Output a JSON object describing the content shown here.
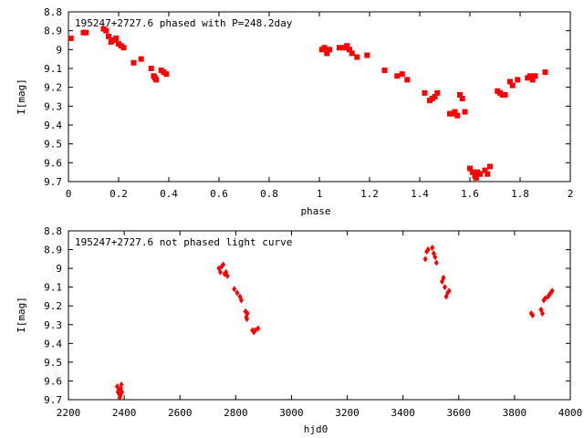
{
  "chart_data": [
    {
      "type": "scatter",
      "title": "195247+2727.6 phased with P=248.2day",
      "xlabel": "phase",
      "ylabel": "I[mag]",
      "xlim": [
        0,
        2
      ],
      "ylim": [
        8.8,
        9.7
      ],
      "y_inverted": true,
      "grid": false,
      "marker": "square",
      "color": "#ff0000",
      "x_ticks": [
        "0",
        "0.2",
        "0.4",
        "0.6",
        "0.8",
        "1",
        "1.2",
        "1.4",
        "1.6",
        "1.8",
        "2"
      ],
      "y_ticks": [
        "8.8",
        "8.9",
        "9",
        "9.1",
        "9.2",
        "9.3",
        "9.4",
        "9.5",
        "9.6",
        "9.7"
      ],
      "x_tick_values": [
        0,
        0.2,
        0.4,
        0.6,
        0.8,
        1,
        1.2,
        1.4,
        1.6,
        1.8,
        2
      ],
      "y_tick_values": [
        8.8,
        8.9,
        9.0,
        9.1,
        9.2,
        9.3,
        9.4,
        9.5,
        9.6,
        9.7
      ],
      "x": [
        0.01,
        0.06,
        0.07,
        0.14,
        0.15,
        0.16,
        0.17,
        0.18,
        0.19,
        0.2,
        0.21,
        0.22,
        0.26,
        0.29,
        0.33,
        0.34,
        0.345,
        0.35,
        0.37,
        0.38,
        0.39,
        1.01,
        1.02,
        1.03,
        1.04,
        1.08,
        1.1,
        1.11,
        1.12,
        1.13,
        1.15,
        1.19,
        1.26,
        1.31,
        1.33,
        1.35,
        1.42,
        1.44,
        1.45,
        1.46,
        1.47,
        1.52,
        1.53,
        1.54,
        1.55,
        1.56,
        1.57,
        1.58,
        1.6,
        1.61,
        1.62,
        1.625,
        1.63,
        1.64,
        1.66,
        1.67,
        1.68,
        1.71,
        1.72,
        1.73,
        1.74,
        1.76,
        1.77,
        1.79,
        1.83,
        1.84,
        1.85,
        1.86,
        1.9
      ],
      "y": [
        8.94,
        8.91,
        8.91,
        8.89,
        8.9,
        8.93,
        8.96,
        8.95,
        8.94,
        8.97,
        8.98,
        8.99,
        9.07,
        9.05,
        9.1,
        9.14,
        9.15,
        9.16,
        9.11,
        9.12,
        9.13,
        9.0,
        8.99,
        9.02,
        9.0,
        8.99,
        8.99,
        8.98,
        9.0,
        9.02,
        9.04,
        9.03,
        9.11,
        9.14,
        9.13,
        9.16,
        9.23,
        9.27,
        9.26,
        9.25,
        9.23,
        9.34,
        9.34,
        9.33,
        9.35,
        9.24,
        9.26,
        9.33,
        9.63,
        9.65,
        9.67,
        9.68,
        9.65,
        9.66,
        9.64,
        9.66,
        9.62,
        9.22,
        9.23,
        9.24,
        9.24,
        9.17,
        9.19,
        9.16,
        9.15,
        9.14,
        9.16,
        9.14,
        9.12
      ]
    },
    {
      "type": "scatter",
      "title": "195247+2727.6 not phased light curve",
      "xlabel": "hjd0",
      "ylabel": "I[mag]",
      "xlim": [
        2200,
        4000
      ],
      "ylim": [
        8.8,
        9.7
      ],
      "y_inverted": true,
      "grid": false,
      "marker": "diamond",
      "color": "#ff0000",
      "x_ticks": [
        "2200",
        "2400",
        "2600",
        "2800",
        "3000",
        "3200",
        "3400",
        "3600",
        "3800",
        "4000"
      ],
      "y_ticks": [
        "8.8",
        "8.9",
        "9",
        "9.1",
        "9.2",
        "9.3",
        "9.4",
        "9.5",
        "9.6",
        "9.7"
      ],
      "x_tick_values": [
        2200,
        2400,
        2600,
        2800,
        3000,
        3200,
        3400,
        3600,
        3800,
        4000
      ],
      "y_tick_values": [
        8.8,
        8.9,
        9.0,
        9.1,
        9.2,
        9.3,
        9.4,
        9.5,
        9.6,
        9.7
      ],
      "x": [
        2375,
        2378,
        2380,
        2382,
        2384,
        2386,
        2388,
        2390,
        2392,
        2740,
        2745,
        2750,
        2755,
        2760,
        2765,
        2770,
        2795,
        2805,
        2815,
        2820,
        2835,
        2838,
        2840,
        2842,
        2860,
        2865,
        2870,
        2880,
        3480,
        3485,
        3490,
        3505,
        3510,
        3515,
        3520,
        3540,
        3545,
        3550,
        3555,
        3560,
        3565,
        3860,
        3865,
        3895,
        3900,
        3905,
        3910,
        3920,
        3925,
        3930,
        3935
      ],
      "y": [
        9.63,
        9.66,
        9.65,
        9.67,
        9.69,
        9.68,
        9.64,
        9.62,
        9.66,
        9.0,
        9.02,
        8.99,
        8.98,
        9.03,
        9.02,
        9.04,
        9.11,
        9.13,
        9.15,
        9.17,
        9.23,
        9.26,
        9.27,
        9.24,
        9.33,
        9.34,
        9.33,
        9.32,
        8.95,
        8.91,
        8.9,
        8.89,
        8.92,
        8.94,
        8.97,
        9.07,
        9.05,
        9.1,
        9.15,
        9.13,
        9.12,
        9.24,
        9.25,
        9.22,
        9.24,
        9.17,
        9.16,
        9.15,
        9.14,
        9.13,
        9.12
      ]
    }
  ]
}
